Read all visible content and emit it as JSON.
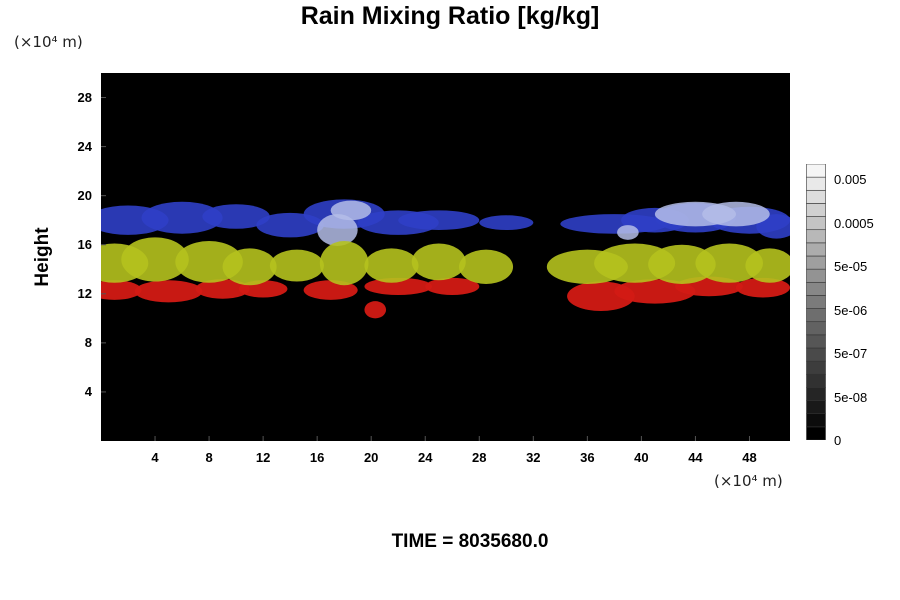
{
  "chart_data": {
    "type": "heatmap",
    "title": "Rain Mixing Ratio [kg/kg]",
    "ylabel": "Height",
    "xlabel": "",
    "y_unit": "(×10⁴ m)",
    "x_unit": "(×10⁴ m)",
    "xlim": [
      0,
      51
    ],
    "ylim": [
      0,
      30
    ],
    "x_ticks": [
      "4",
      "8",
      "12",
      "16",
      "20",
      "24",
      "28",
      "32",
      "36",
      "40",
      "44",
      "48"
    ],
    "y_ticks": [
      "4",
      "8",
      "12",
      "16",
      "20",
      "24",
      "28"
    ],
    "colorbar": {
      "labels": [
        "0.005",
        "0.0005",
        "5e-05",
        "5e-06",
        "5e-07",
        "5e-08",
        "0"
      ],
      "label_values": [
        0.005,
        0.0005,
        5e-05,
        5e-06,
        5e-07,
        5e-08,
        0
      ],
      "levels": 21,
      "color_low": "#000000",
      "color_high": "#f5f5f5"
    },
    "cloud_layers": [
      {
        "name": "red band",
        "color": "#d31a14",
        "y_range": [
          11,
          13
        ]
      },
      {
        "name": "yellow band",
        "color": "#b5c21e",
        "y_range": [
          13,
          17
        ]
      },
      {
        "name": "blue band",
        "color": "#2f3fc7",
        "y_range": [
          16,
          19.5
        ]
      },
      {
        "name": "light patches",
        "color": "#b4bde8",
        "y_range": [
          16,
          19.5
        ]
      }
    ],
    "background_color": "#000000"
  },
  "footer": {
    "time": "TIME = 8035680.0"
  }
}
